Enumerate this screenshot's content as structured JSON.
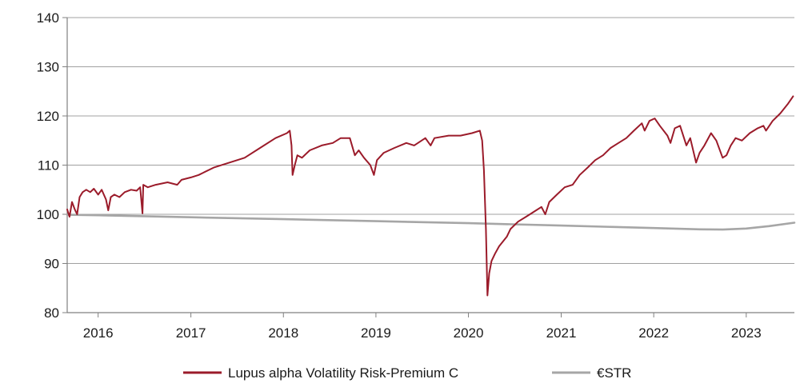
{
  "chart_data": {
    "type": "line",
    "title": "",
    "xlabel": "",
    "ylabel": "",
    "ylim": [
      80,
      140
    ],
    "yticks": [
      80,
      90,
      100,
      110,
      120,
      130,
      140
    ],
    "xlim": [
      "2015-09-01",
      "2023-07-10"
    ],
    "xticks": [
      {
        "date": "2016-01-01",
        "label": "2016"
      },
      {
        "date": "2017-01-01",
        "label": "2017"
      },
      {
        "date": "2018-01-01",
        "label": "2018"
      },
      {
        "date": "2019-01-01",
        "label": "2019"
      },
      {
        "date": "2020-01-01",
        "label": "2020"
      },
      {
        "date": "2021-01-01",
        "label": "2021"
      },
      {
        "date": "2022-01-01",
        "label": "2022"
      },
      {
        "date": "2023-01-01",
        "label": "2023"
      }
    ],
    "grid": "horizontal",
    "legend_position": "bottom",
    "series": [
      {
        "name": "Lupus alpha Volatility Risk-Premium C",
        "color": "#9b1b2a",
        "points": [
          [
            "2015-09-01",
            101.0
          ],
          [
            "2015-09-10",
            99.5
          ],
          [
            "2015-09-20",
            102.5
          ],
          [
            "2015-10-01",
            101.0
          ],
          [
            "2015-10-10",
            100.0
          ],
          [
            "2015-10-20",
            103.5
          ],
          [
            "2015-11-01",
            104.5
          ],
          [
            "2015-11-15",
            105.0
          ],
          [
            "2015-12-01",
            104.5
          ],
          [
            "2015-12-15",
            105.2
          ],
          [
            "2016-01-01",
            104.0
          ],
          [
            "2016-01-15",
            105.0
          ],
          [
            "2016-02-01",
            103.0
          ],
          [
            "2016-02-10",
            100.8
          ],
          [
            "2016-02-20",
            103.5
          ],
          [
            "2016-03-05",
            104.0
          ],
          [
            "2016-03-25",
            103.5
          ],
          [
            "2016-04-15",
            104.5
          ],
          [
            "2016-05-10",
            105.0
          ],
          [
            "2016-06-01",
            104.8
          ],
          [
            "2016-06-15",
            105.5
          ],
          [
            "2016-06-24",
            100.2
          ],
          [
            "2016-06-27",
            106.0
          ],
          [
            "2016-07-15",
            105.5
          ],
          [
            "2016-08-15",
            106.0
          ],
          [
            "2016-10-01",
            106.5
          ],
          [
            "2016-11-08",
            106.0
          ],
          [
            "2016-11-25",
            107.0
          ],
          [
            "2017-01-01",
            107.5
          ],
          [
            "2017-02-01",
            108.0
          ],
          [
            "2017-04-01",
            109.5
          ],
          [
            "2017-06-01",
            110.5
          ],
          [
            "2017-08-01",
            111.5
          ],
          [
            "2017-10-01",
            113.5
          ],
          [
            "2017-12-01",
            115.5
          ],
          [
            "2018-01-15",
            116.5
          ],
          [
            "2018-01-26",
            117.0
          ],
          [
            "2018-02-02",
            114.0
          ],
          [
            "2018-02-06",
            108.0
          ],
          [
            "2018-02-15",
            110.0
          ],
          [
            "2018-02-25",
            112.0
          ],
          [
            "2018-03-15",
            111.5
          ],
          [
            "2018-04-15",
            113.0
          ],
          [
            "2018-06-01",
            114.0
          ],
          [
            "2018-07-15",
            114.5
          ],
          [
            "2018-08-15",
            115.5
          ],
          [
            "2018-09-20",
            115.5
          ],
          [
            "2018-10-10",
            112.0
          ],
          [
            "2018-10-25",
            113.0
          ],
          [
            "2018-11-15",
            111.5
          ],
          [
            "2018-12-10",
            110.0
          ],
          [
            "2018-12-24",
            108.0
          ],
          [
            "2019-01-05",
            111.0
          ],
          [
            "2019-02-01",
            112.5
          ],
          [
            "2019-03-15",
            113.5
          ],
          [
            "2019-05-01",
            114.5
          ],
          [
            "2019-06-01",
            114.0
          ],
          [
            "2019-07-15",
            115.5
          ],
          [
            "2019-08-05",
            114.0
          ],
          [
            "2019-08-20",
            115.5
          ],
          [
            "2019-10-15",
            116.0
          ],
          [
            "2019-12-01",
            116.0
          ],
          [
            "2020-01-15",
            116.5
          ],
          [
            "2020-02-15",
            117.0
          ],
          [
            "2020-02-24",
            115.0
          ],
          [
            "2020-03-02",
            109.0
          ],
          [
            "2020-03-10",
            97.0
          ],
          [
            "2020-03-16",
            83.5
          ],
          [
            "2020-03-23",
            88.0
          ],
          [
            "2020-04-01",
            90.5
          ],
          [
            "2020-04-15",
            92.0
          ],
          [
            "2020-05-01",
            93.5
          ],
          [
            "2020-06-01",
            95.5
          ],
          [
            "2020-06-15",
            97.0
          ],
          [
            "2020-07-15",
            98.5
          ],
          [
            "2020-08-15",
            99.5
          ],
          [
            "2020-09-15",
            100.5
          ],
          [
            "2020-10-15",
            101.5
          ],
          [
            "2020-10-30",
            100.0
          ],
          [
            "2020-11-15",
            102.5
          ],
          [
            "2020-12-15",
            104.0
          ],
          [
            "2021-01-15",
            105.5
          ],
          [
            "2021-02-15",
            106.0
          ],
          [
            "2021-03-15",
            108.0
          ],
          [
            "2021-04-15",
            109.5
          ],
          [
            "2021-05-15",
            111.0
          ],
          [
            "2021-06-15",
            112.0
          ],
          [
            "2021-07-15",
            113.5
          ],
          [
            "2021-08-15",
            114.5
          ],
          [
            "2021-09-15",
            115.5
          ],
          [
            "2021-10-15",
            117.0
          ],
          [
            "2021-11-15",
            118.5
          ],
          [
            "2021-11-26",
            117.0
          ],
          [
            "2021-12-15",
            119.0
          ],
          [
            "2022-01-05",
            119.5
          ],
          [
            "2022-01-25",
            118.0
          ],
          [
            "2022-02-24",
            116.0
          ],
          [
            "2022-03-08",
            114.5
          ],
          [
            "2022-03-25",
            117.5
          ],
          [
            "2022-04-15",
            118.0
          ],
          [
            "2022-05-10",
            114.0
          ],
          [
            "2022-05-25",
            115.5
          ],
          [
            "2022-06-17",
            110.5
          ],
          [
            "2022-07-01",
            112.5
          ],
          [
            "2022-07-20",
            114.0
          ],
          [
            "2022-08-15",
            116.5
          ],
          [
            "2022-09-05",
            115.0
          ],
          [
            "2022-09-30",
            111.5
          ],
          [
            "2022-10-15",
            112.0
          ],
          [
            "2022-11-01",
            114.0
          ],
          [
            "2022-11-20",
            115.5
          ],
          [
            "2022-12-15",
            115.0
          ],
          [
            "2023-01-15",
            116.5
          ],
          [
            "2023-02-15",
            117.5
          ],
          [
            "2023-03-10",
            118.0
          ],
          [
            "2023-03-20",
            117.0
          ],
          [
            "2023-04-15",
            119.0
          ],
          [
            "2023-05-15",
            120.5
          ],
          [
            "2023-06-15",
            122.5
          ],
          [
            "2023-07-05",
            124.0
          ]
        ]
      },
      {
        "name": "€STR",
        "color": "#a6a6a6",
        "points": [
          [
            "2015-09-01",
            99.9
          ],
          [
            "2016-01-01",
            99.8
          ],
          [
            "2017-01-01",
            99.4
          ],
          [
            "2018-01-01",
            99.0
          ],
          [
            "2019-01-01",
            98.6
          ],
          [
            "2020-01-01",
            98.2
          ],
          [
            "2021-01-01",
            97.7
          ],
          [
            "2022-01-01",
            97.2
          ],
          [
            "2022-07-01",
            96.95
          ],
          [
            "2022-10-01",
            96.9
          ],
          [
            "2023-01-01",
            97.1
          ],
          [
            "2023-04-01",
            97.6
          ],
          [
            "2023-07-10",
            98.3
          ]
        ]
      }
    ]
  }
}
